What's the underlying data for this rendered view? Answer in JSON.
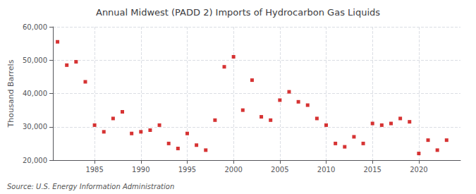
{
  "chart_data": {
    "type": "scatter",
    "title": "Annual Midwest (PADD 2) Imports of Hydrocarbon Gas Liquids",
    "ylabel": "Thousand Barrels",
    "annotation": "Source: U.S. Energy Information Administration",
    "x": [
      1981,
      1982,
      1983,
      1984,
      1985,
      1986,
      1987,
      1988,
      1989,
      1990,
      1991,
      1992,
      1993,
      1994,
      1995,
      1996,
      1997,
      1998,
      1999,
      2000,
      2001,
      2002,
      2003,
      2004,
      2005,
      2006,
      2007,
      2008,
      2009,
      2010,
      2011,
      2012,
      2013,
      2014,
      2015,
      2016,
      2017,
      2018,
      2019,
      2020,
      2021,
      2022,
      2023
    ],
    "values": [
      55500,
      48500,
      49500,
      43500,
      30500,
      28500,
      32500,
      34500,
      28000,
      28500,
      29000,
      30500,
      25000,
      23500,
      28000,
      24500,
      23000,
      32000,
      48000,
      51000,
      35000,
      44000,
      33000,
      32000,
      38000,
      40500,
      37500,
      36500,
      32500,
      30500,
      25000,
      24000,
      27000,
      25000,
      31000,
      30500,
      31000,
      32500,
      31500,
      22000,
      26000,
      23000,
      26000
    ],
    "color": "#cc0000",
    "marker": "square",
    "grid": true,
    "xlim": [
      1980.5,
      2024.5
    ],
    "xticks": [
      1985,
      1990,
      1995,
      2000,
      2005,
      2010,
      2015,
      2020
    ],
    "ylim": [
      20000,
      60000
    ],
    "yticks": [
      {
        "value": 20000,
        "label": "20,000"
      },
      {
        "value": 30000,
        "label": "30,000"
      },
      {
        "value": 40000,
        "label": "40,000"
      },
      {
        "value": 50000,
        "label": "50,000"
      },
      {
        "value": 60000,
        "label": "60,000"
      }
    ]
  }
}
